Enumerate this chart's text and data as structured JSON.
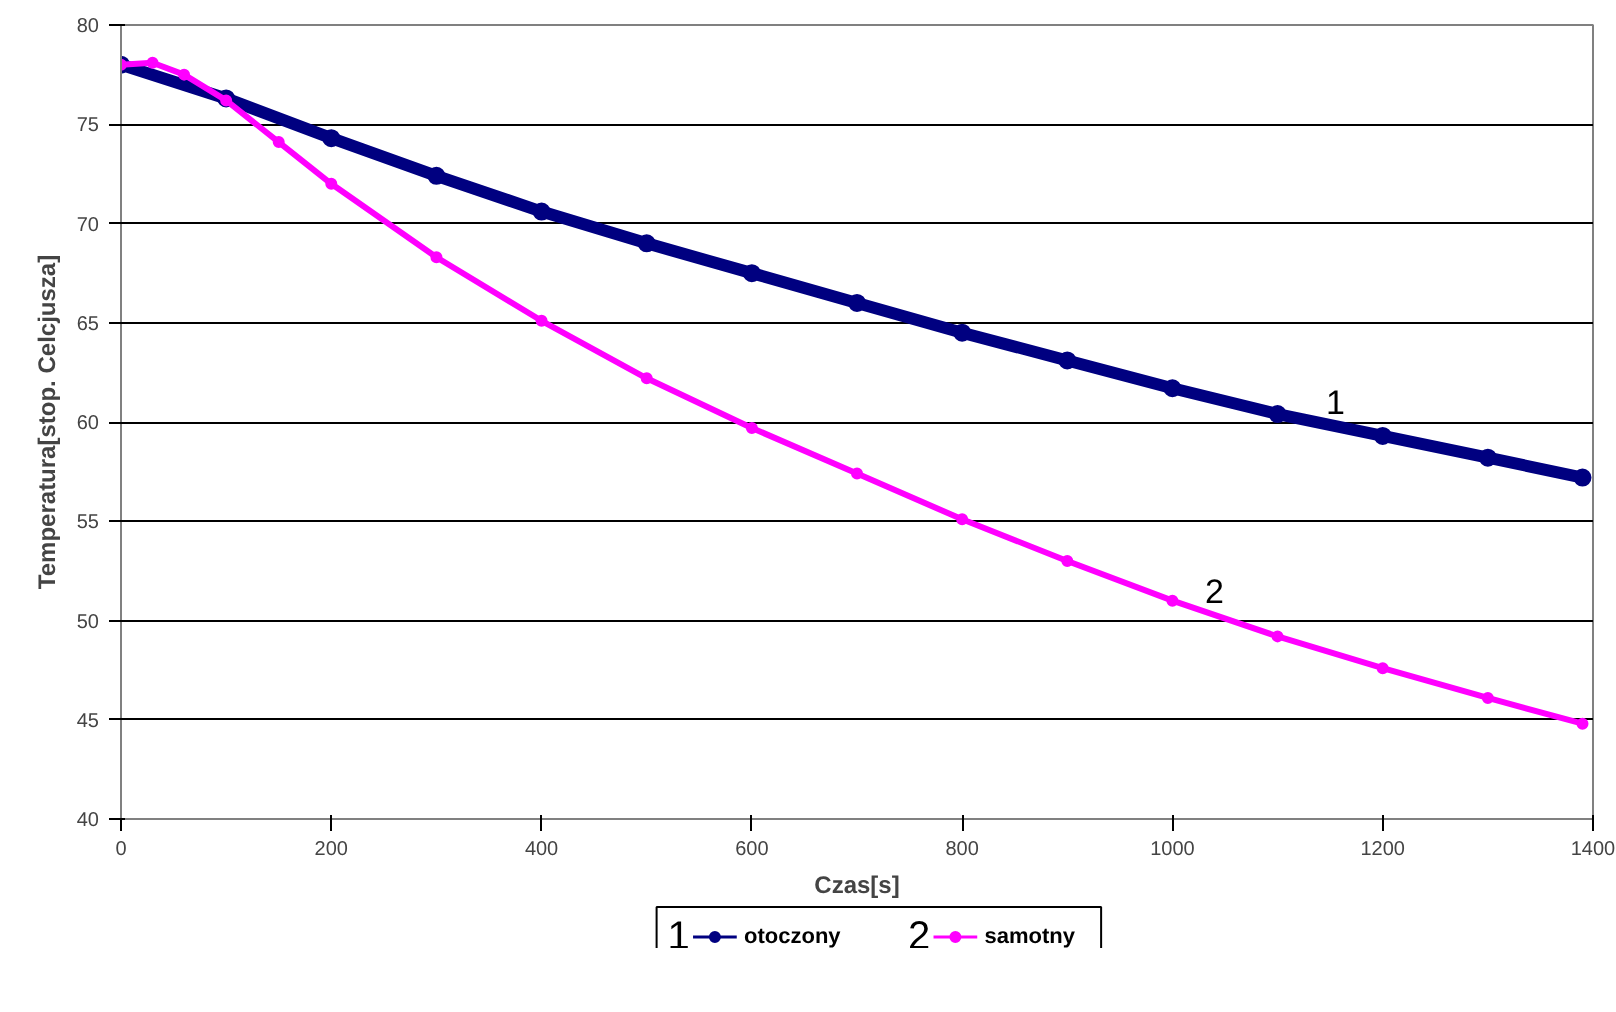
{
  "chart_data": {
    "type": "line",
    "xlabel": "Czas[s]",
    "ylabel": "Temperatura[stop. Celcjusza]",
    "xlim": [
      0,
      1400
    ],
    "xticks": [
      0,
      200,
      400,
      600,
      800,
      1000,
      1200,
      1400
    ],
    "ylim": [
      40,
      80
    ],
    "yticks": [
      40,
      45,
      50,
      55,
      60,
      65,
      70,
      75,
      80
    ],
    "grid": "y",
    "legend": "bottom",
    "marker": "circle",
    "line_style": "solid",
    "series": [
      {
        "name": "otoczony",
        "color": "#000080",
        "x": [
          0,
          100,
          200,
          300,
          400,
          500,
          600,
          700,
          800,
          900,
          1000,
          1100,
          1200,
          1300,
          1390
        ],
        "values": [
          78.0,
          76.3,
          74.3,
          72.4,
          70.6,
          69.0,
          67.5,
          66.0,
          64.5,
          63.1,
          61.7,
          60.4,
          59.3,
          58.2,
          57.2
        ]
      },
      {
        "name": "samotny",
        "color": "#ff00ff",
        "x": [
          0,
          30,
          60,
          100,
          150,
          200,
          300,
          400,
          500,
          600,
          700,
          800,
          900,
          1000,
          1100,
          1200,
          1300,
          1390
        ],
        "values": [
          78.0,
          78.1,
          77.5,
          76.2,
          74.1,
          72.0,
          68.3,
          65.1,
          62.2,
          59.7,
          57.4,
          55.1,
          53.0,
          51.0,
          49.2,
          47.6,
          46.1,
          44.8
        ]
      }
    ],
    "annotations": [
      {
        "text": "1",
        "x": 1155,
        "y": 60.0
      },
      {
        "text": "2",
        "x": 1040,
        "y": 50.5
      }
    ]
  }
}
